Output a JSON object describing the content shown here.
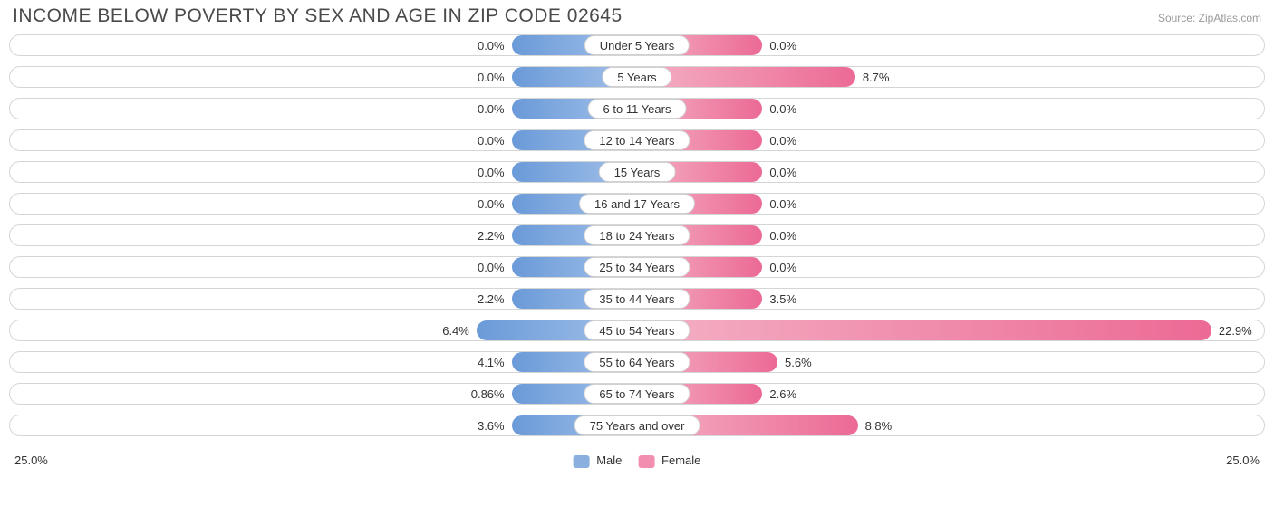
{
  "title": "INCOME BELOW POVERTY BY SEX AND AGE IN ZIP CODE 02645",
  "source": "Source: ZipAtlas.com",
  "axis_max": 25.0,
  "axis_max_label": "25.0%",
  "min_bar_pct_of_half": 20.0,
  "colors": {
    "male_start": "#a4c2ea",
    "male_end": "#6a9ad8",
    "female_start": "#f4b0c4",
    "female_end": "#ec6a95",
    "row_border": "#d5d5d5",
    "text": "#333333",
    "title": "#4a4a4a",
    "source": "#999999",
    "background": "#ffffff"
  },
  "legend": {
    "male": {
      "label": "Male",
      "swatch": "#8ab0e0"
    },
    "female": {
      "label": "Female",
      "swatch": "#f28fb0"
    }
  },
  "rows": [
    {
      "category": "Under 5 Years",
      "male": 0.0,
      "male_label": "0.0%",
      "female": 0.0,
      "female_label": "0.0%"
    },
    {
      "category": "5 Years",
      "male": 0.0,
      "male_label": "0.0%",
      "female": 8.7,
      "female_label": "8.7%"
    },
    {
      "category": "6 to 11 Years",
      "male": 0.0,
      "male_label": "0.0%",
      "female": 0.0,
      "female_label": "0.0%"
    },
    {
      "category": "12 to 14 Years",
      "male": 0.0,
      "male_label": "0.0%",
      "female": 0.0,
      "female_label": "0.0%"
    },
    {
      "category": "15 Years",
      "male": 0.0,
      "male_label": "0.0%",
      "female": 0.0,
      "female_label": "0.0%"
    },
    {
      "category": "16 and 17 Years",
      "male": 0.0,
      "male_label": "0.0%",
      "female": 0.0,
      "female_label": "0.0%"
    },
    {
      "category": "18 to 24 Years",
      "male": 2.2,
      "male_label": "2.2%",
      "female": 0.0,
      "female_label": "0.0%"
    },
    {
      "category": "25 to 34 Years",
      "male": 0.0,
      "male_label": "0.0%",
      "female": 0.0,
      "female_label": "0.0%"
    },
    {
      "category": "35 to 44 Years",
      "male": 2.2,
      "male_label": "2.2%",
      "female": 3.5,
      "female_label": "3.5%"
    },
    {
      "category": "45 to 54 Years",
      "male": 6.4,
      "male_label": "6.4%",
      "female": 22.9,
      "female_label": "22.9%"
    },
    {
      "category": "55 to 64 Years",
      "male": 4.1,
      "male_label": "4.1%",
      "female": 5.6,
      "female_label": "5.6%"
    },
    {
      "category": "65 to 74 Years",
      "male": 0.86,
      "male_label": "0.86%",
      "female": 2.6,
      "female_label": "2.6%"
    },
    {
      "category": "75 Years and over",
      "male": 3.6,
      "male_label": "3.6%",
      "female": 8.8,
      "female_label": "8.8%"
    }
  ]
}
